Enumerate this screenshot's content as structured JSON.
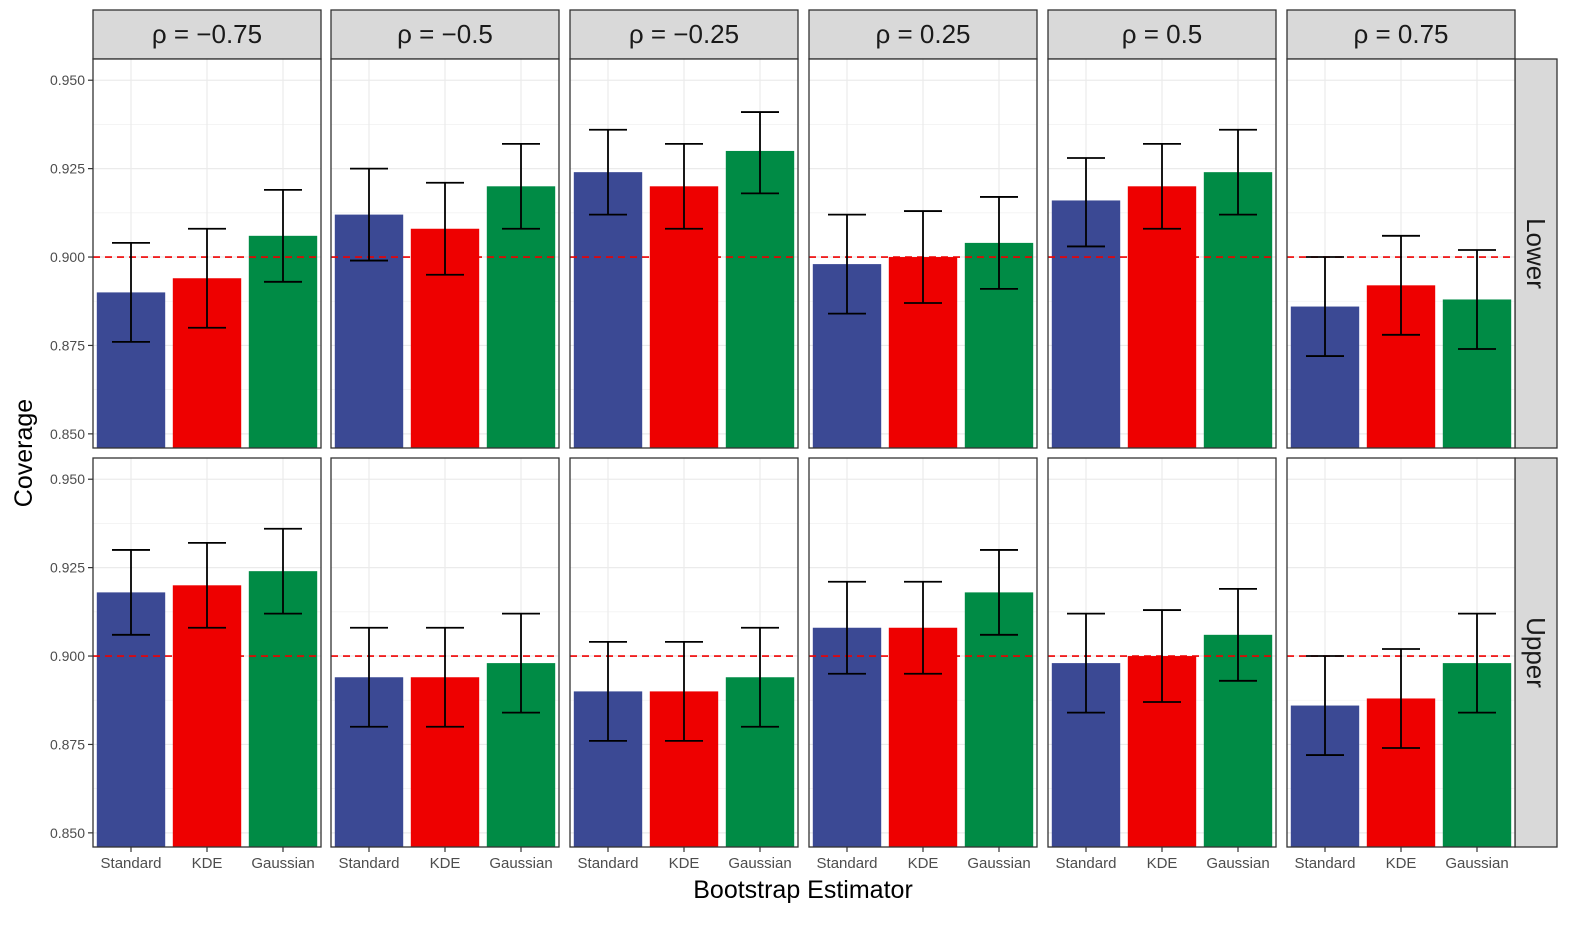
{
  "chart_data": {
    "type": "bar",
    "xlabel": "Bootstrap Estimator",
    "ylabel": "Coverage",
    "categories": [
      "Standard",
      "KDE",
      "Gaussian"
    ],
    "colors": {
      "Standard": "#3B4994",
      "KDE": "#EE0000",
      "Gaussian": "#008B45"
    },
    "ylim": [
      0.846,
      0.956
    ],
    "yticks": [
      0.85,
      0.875,
      0.9,
      0.925,
      0.95
    ],
    "ytick_labels": [
      "0.850",
      "0.875",
      "0.900",
      "0.925",
      "0.950"
    ],
    "reference_line": {
      "y": 0.9,
      "style": "dashed",
      "color": "#EE0000"
    },
    "grid": true,
    "columns": [
      "ρ = −0.75",
      "ρ = −0.5",
      "ρ = −0.25",
      "ρ = 0.25",
      "ρ = 0.5",
      "ρ = 0.75"
    ],
    "rows": [
      "Lower",
      "Upper"
    ],
    "panels": [
      {
        "row": "Lower",
        "column": "ρ = −0.75",
        "values": [
          0.89,
          0.894,
          0.906
        ],
        "lower": [
          0.876,
          0.88,
          0.893
        ],
        "upper": [
          0.904,
          0.908,
          0.919
        ]
      },
      {
        "row": "Lower",
        "column": "ρ = −0.5",
        "values": [
          0.912,
          0.908,
          0.92
        ],
        "lower": [
          0.899,
          0.895,
          0.908
        ],
        "upper": [
          0.925,
          0.921,
          0.932
        ]
      },
      {
        "row": "Lower",
        "column": "ρ = −0.25",
        "values": [
          0.924,
          0.92,
          0.93
        ],
        "lower": [
          0.912,
          0.908,
          0.918
        ],
        "upper": [
          0.936,
          0.932,
          0.941
        ]
      },
      {
        "row": "Lower",
        "column": "ρ = 0.25",
        "values": [
          0.898,
          0.9,
          0.904
        ],
        "lower": [
          0.884,
          0.887,
          0.891
        ],
        "upper": [
          0.912,
          0.913,
          0.917
        ]
      },
      {
        "row": "Lower",
        "column": "ρ = 0.5",
        "values": [
          0.916,
          0.92,
          0.924
        ],
        "lower": [
          0.903,
          0.908,
          0.912
        ],
        "upper": [
          0.928,
          0.932,
          0.936
        ]
      },
      {
        "row": "Lower",
        "column": "ρ = 0.75",
        "values": [
          0.886,
          0.892,
          0.888
        ],
        "lower": [
          0.872,
          0.878,
          0.874
        ],
        "upper": [
          0.9,
          0.906,
          0.902
        ]
      },
      {
        "row": "Upper",
        "column": "ρ = −0.75",
        "values": [
          0.918,
          0.92,
          0.924
        ],
        "lower": [
          0.906,
          0.908,
          0.912
        ],
        "upper": [
          0.93,
          0.932,
          0.936
        ]
      },
      {
        "row": "Upper",
        "column": "ρ = −0.5",
        "values": [
          0.894,
          0.894,
          0.898
        ],
        "lower": [
          0.88,
          0.88,
          0.884
        ],
        "upper": [
          0.908,
          0.908,
          0.912
        ]
      },
      {
        "row": "Upper",
        "column": "ρ = −0.25",
        "values": [
          0.89,
          0.89,
          0.894
        ],
        "lower": [
          0.876,
          0.876,
          0.88
        ],
        "upper": [
          0.904,
          0.904,
          0.908
        ]
      },
      {
        "row": "Upper",
        "column": "ρ = 0.25",
        "values": [
          0.908,
          0.908,
          0.918
        ],
        "lower": [
          0.895,
          0.895,
          0.906
        ],
        "upper": [
          0.921,
          0.921,
          0.93
        ]
      },
      {
        "row": "Upper",
        "column": "ρ = 0.5",
        "values": [
          0.898,
          0.9,
          0.906
        ],
        "lower": [
          0.884,
          0.887,
          0.893
        ],
        "upper": [
          0.912,
          0.913,
          0.919
        ]
      },
      {
        "row": "Upper",
        "column": "ρ = 0.75",
        "values": [
          0.886,
          0.888,
          0.898
        ],
        "lower": [
          0.872,
          0.874,
          0.884
        ],
        "upper": [
          0.9,
          0.902,
          0.912
        ]
      }
    ]
  }
}
